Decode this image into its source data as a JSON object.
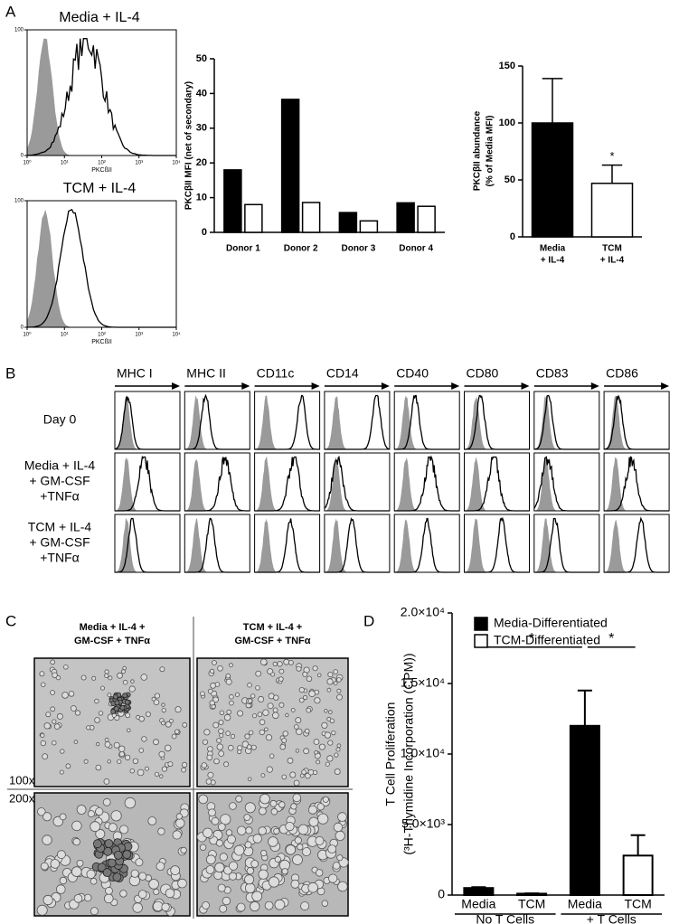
{
  "panel_labels": [
    "A",
    "B",
    "C",
    "D"
  ],
  "panel_a": {
    "histograms": [
      {
        "title": "Media + IL-4"
      },
      {
        "title": "TCM + IL-4"
      }
    ],
    "xlabel": "PKCßII",
    "xlog": true,
    "xlim": [
      1,
      10000
    ],
    "xticks": [
      {
        "value": 1,
        "label": "10⁰"
      },
      {
        "value": 10,
        "label": "10¹"
      },
      {
        "value": 100,
        "label": "10²"
      },
      {
        "value": 1000,
        "label": "10³"
      },
      {
        "value": 10000,
        "label": "10⁴"
      }
    ],
    "ylim": [
      0,
      100
    ],
    "yticks": [
      0,
      100
    ]
  },
  "panel_b": {
    "markers": [
      "MHC I",
      "MHC II",
      "CD11c",
      "CD14",
      "CD40",
      "CD80",
      "CD83",
      "CD86"
    ],
    "rows": [
      [
        "Day 0"
      ],
      [
        "Media + IL-4",
        "+ GM-CSF",
        "+TNFα"
      ],
      [
        "TCM + IL-4",
        "+ GM-CSF",
        "+TNFα"
      ]
    ]
  },
  "panel_c": {
    "conditions": [
      [
        "Media + IL-4 +",
        "GM-CSF + TNFα"
      ],
      [
        "TCM + IL-4 +",
        "GM-CSF + TNFα"
      ]
    ],
    "magnifications": [
      "100x",
      "200x"
    ]
  },
  "chart_data": [
    {
      "type": "bar",
      "ylabel": "PKCβII MFI  (net of secondary)",
      "categories": [
        "Donor 1",
        "Donor 2",
        "Donor 3",
        "Donor 4"
      ],
      "series": [
        {
          "color": "#000000",
          "values": [
            18,
            38.3,
            5.7,
            8.5
          ]
        },
        {
          "color": "#ffffff",
          "values": [
            8,
            8.6,
            3.3,
            7.5
          ]
        }
      ],
      "ylim": [
        0,
        50
      ],
      "yticks": [
        0,
        10,
        20,
        30,
        40,
        50
      ]
    },
    {
      "type": "bar",
      "ylabel": [
        "PKCβII abundance",
        "(% of  Media MFI)"
      ],
      "categories": [
        [
          "Media",
          "+ IL-4"
        ],
        [
          "TCM",
          "+ IL-4"
        ]
      ],
      "series": [
        {
          "color": "#000000",
          "values": [
            100,
            null
          ],
          "errors": [
            39,
            null
          ]
        },
        {
          "color": "#ffffff",
          "values": [
            null,
            47
          ],
          "errors": [
            null,
            16
          ]
        }
      ],
      "significance": [
        {
          "label": "*",
          "categories": [
            1
          ]
        }
      ],
      "ylim": [
        0,
        150
      ],
      "yticks": [
        0,
        50,
        100,
        150
      ]
    },
    {
      "type": "bar",
      "ylabel": [
        "T Cell Proliferation",
        "(³H-Thymidine Incorporation (CPM))"
      ],
      "categories": [
        "Media",
        "TCM",
        "Media",
        "TCM"
      ],
      "group_labels": [
        "No T Cells",
        "+ T Cells"
      ],
      "series": [
        {
          "name": "Media-Differentiated",
          "color": "#000000",
          "values": [
            500,
            null,
            12000,
            null
          ],
          "errors": [
            60,
            null,
            2500,
            null
          ]
        },
        {
          "name": "TCM-Differentiated",
          "color": "#ffffff",
          "values": [
            null,
            100,
            null,
            2800
          ],
          "errors": [
            null,
            20,
            null,
            1450
          ]
        }
      ],
      "significance": [
        {
          "label": "*",
          "categories": [
            0,
            2
          ]
        },
        {
          "label": "*",
          "categories": [
            2,
            3
          ]
        }
      ],
      "ylim": [
        0,
        20000
      ],
      "yticks": [
        0,
        {
          "value": 5000,
          "label": "5.0×10³"
        },
        {
          "value": 10000,
          "label": "1.0×10⁴"
        },
        {
          "value": 15000,
          "label": "1.5×10⁴"
        },
        {
          "value": 20000,
          "label": "2.0×10⁴"
        }
      ]
    }
  ]
}
